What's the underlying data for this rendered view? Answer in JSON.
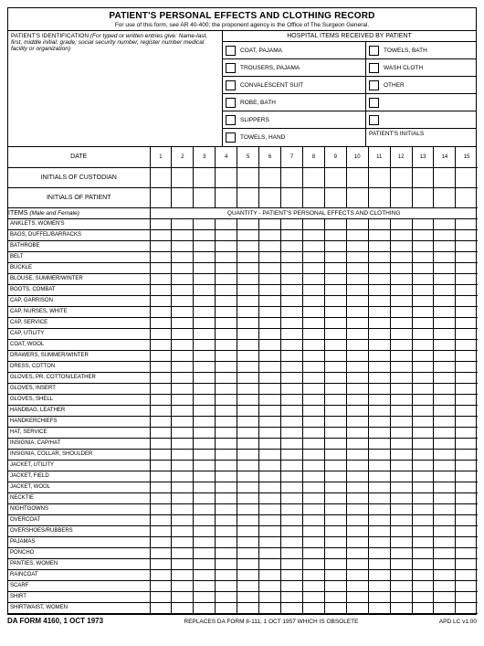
{
  "title": "PATIENT'S PERSONAL EFFECTS AND CLOTHING RECORD",
  "subtitle": "For use of this form, see AR 40-400; the proponent agency is the Office of The Surgeon General.",
  "pid_label": "PATIENT'S IDENTIFICATION",
  "pid_instr": "(For typed or written entries give: Name-last, first, middle initial; grade; social security number, register number medical facility or organization)",
  "hosp_header": "HOSPITAL ITEMS RECEIVED BY PATIENT",
  "hosp_left": [
    "COAT, PAJAMA",
    "TROUSERS, PAJAMA",
    "CONVALESCENT SUIT",
    "ROBE, BATH",
    "SLIPPERS",
    "TOWELS, HAND"
  ],
  "hosp_right": [
    "TOWELS, BATH",
    "WASH CLOTH",
    "OTHER",
    "",
    "",
    ""
  ],
  "pat_initials": "PATIENT'S INITIALS",
  "cols": [
    "1",
    "2",
    "3",
    "4",
    "5",
    "6",
    "7",
    "8",
    "9",
    "10",
    "11",
    "12",
    "13",
    "14",
    "15"
  ],
  "r_date": "DATE",
  "r_cust": "INITIALS OF CUSTODIAN",
  "r_pat": "INITIALS OF PATIENT",
  "items_label": "ITEMS",
  "items_if": "(Male and Female)",
  "qty_header": "QUANTITY - PATIENT'S PERSONAL EFFECTS AND CLOTHING",
  "items": [
    "ANKLETS, WOMEN'S",
    "BAGS, DUFFEL/BARRACKS",
    "BATHROBE",
    "BELT",
    "BUCKLE",
    "BLOUSE, SUMMER/WINTER",
    "BOOTS, COMBAT",
    "CAP, GARRISON",
    "CAP, NURSES, WHITE",
    "CAP, SERVICE",
    "CAP, UTILITY",
    "COAT, WOOL",
    "DRAWERS, SUMMER/WINTER",
    "DRESS, COTTON",
    "GLOVES, PR. COTTON/LEATHER",
    "GLOVES, INSERT",
    "GLOVES, SHELL",
    "HANDBAG, LEATHER",
    "HANDKERCHIEFS",
    "HAT, SERVICE",
    "INSIGNIA, CAP/HAT",
    "INSIGNIA, COLLAR, SHOULDER",
    "JACKET, UTILITY",
    "JACKET, FIELD",
    "JACKET, WOOL",
    "NECKTIE",
    "NIGHTGOWNS",
    "OVERCOAT",
    "OVERSHOES/RUBBERS",
    "PAJAMAS",
    "PONCHO",
    "PANTIES, WOMEN",
    "RAINCOAT",
    "SCARF",
    "SHIRT",
    "SHIRTWAIST, WOMEN"
  ],
  "footer_form": "DA FORM 4160, 1 OCT 1973",
  "footer_replaces": "REPLACES DA FORM 8-111, 1 OCT 1957 WHICH IS OBSOLETE",
  "footer_ver": "APD LC v1.00"
}
